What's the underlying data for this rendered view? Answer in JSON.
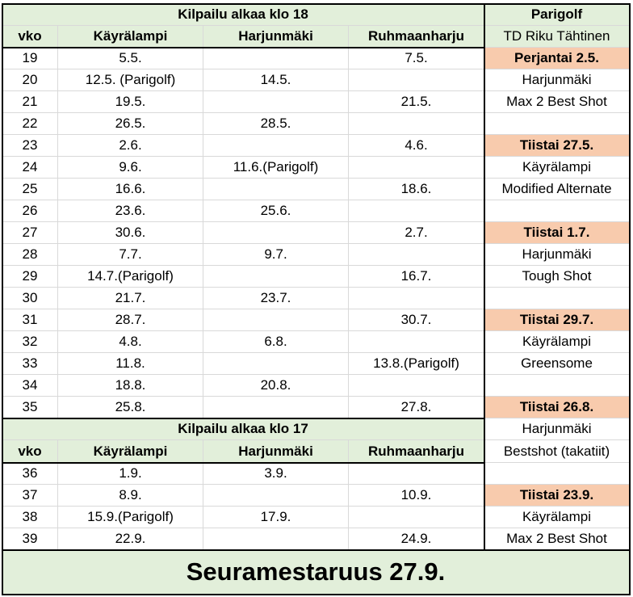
{
  "sections": [
    {
      "title": "Kilpailu alkaa klo 18",
      "headers": [
        "vko",
        "Käyrälampi",
        "Harjunmäki",
        "Ruhmaanharju"
      ],
      "rows": [
        [
          19,
          "5.5.",
          null,
          "7.5."
        ],
        [
          20,
          "12.5. (Parigolf)",
          "14.5.",
          null
        ],
        [
          21,
          "19.5.",
          null,
          "21.5."
        ],
        [
          22,
          "26.5.",
          "28.5.",
          null
        ],
        [
          23,
          "2.6.",
          null,
          "4.6."
        ],
        [
          24,
          "9.6.",
          "11.6.(Parigolf)",
          null
        ],
        [
          25,
          "16.6.",
          null,
          "18.6."
        ],
        [
          26,
          "23.6.",
          "25.6.",
          null
        ],
        [
          27,
          "30.6.",
          null,
          "2.7."
        ],
        [
          28,
          "7.7.",
          "9.7.",
          null
        ],
        [
          29,
          "14.7.(Parigolf)",
          null,
          "16.7."
        ],
        [
          30,
          "21.7.",
          "23.7.",
          null
        ],
        [
          31,
          "28.7.",
          null,
          "30.7."
        ],
        [
          32,
          "4.8.",
          "6.8.",
          null
        ],
        [
          33,
          "11.8.",
          null,
          "13.8.(Parigolf)"
        ],
        [
          34,
          "18.8.",
          "20.8.",
          null
        ],
        [
          35,
          "25.8.",
          null,
          "27.8."
        ]
      ]
    },
    {
      "title": "Kilpailu alkaa klo 17",
      "headers": [
        "vko",
        "Käyrälampi",
        "Harjunmäki",
        "Ruhmaanharju"
      ],
      "rows": [
        [
          36,
          "1.9.",
          "3.9.",
          null
        ],
        [
          37,
          "8.9.",
          null,
          "10.9."
        ],
        [
          38,
          "15.9.(Parigolf)",
          "17.9.",
          null
        ],
        [
          39,
          "22.9.",
          null,
          "24.9."
        ]
      ]
    }
  ],
  "parigolf": {
    "title": "Parigolf",
    "subtitle": "TD Riku Tähtinen",
    "cells": [
      {
        "text": "Perjantai 2.5.",
        "highlight": true
      },
      "Harjunmäki",
      "Max 2 Best Shot",
      null,
      {
        "text": "Tiistai 27.5.",
        "highlight": true
      },
      "Käyrälampi",
      "Modified Alternate",
      null,
      {
        "text": "Tiistai 1.7.",
        "highlight": true
      },
      "Harjunmäki",
      "Tough Shot",
      null,
      {
        "text": "Tiistai 29.7.",
        "highlight": true
      },
      "Käyrälampi",
      "Greensome",
      null,
      {
        "text": "Tiistai 26.8.",
        "highlight": true
      },
      "Harjunmäki",
      "Bestshot (takatiit)",
      null,
      {
        "text": "Tiistai 23.9.",
        "highlight": true
      },
      "Käyrälampi",
      "Max 2 Best Shot"
    ]
  },
  "footer": "Seuramestaruus 27.9."
}
